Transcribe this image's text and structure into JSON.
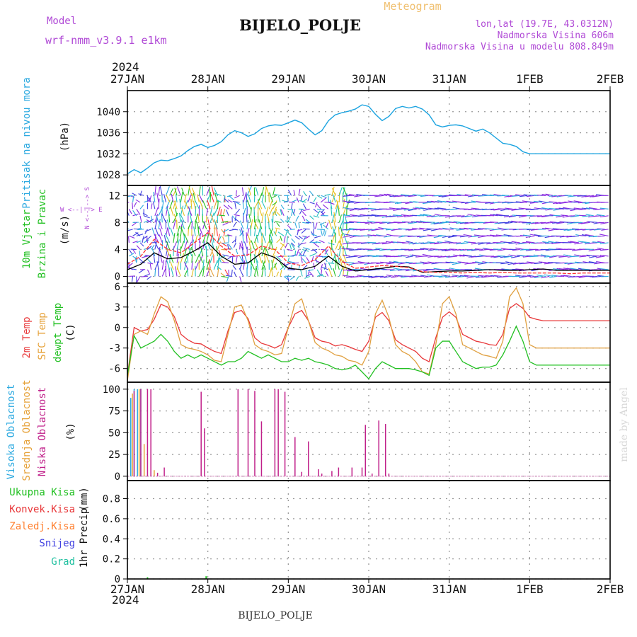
{
  "header": {
    "model_label": "Model",
    "model_name": "wrf-nmm_v3.9.1 e1km",
    "title": "BIJELO_POLJE",
    "meteogram_label": "Meteogram",
    "lonlat": "lon,lat (19.7E, 43.0312N)",
    "altitude": "Nadmorska Visina 606m",
    "model_altitude": "Nadmorska Visina u modelu 808.849m",
    "footer_station": "BIJELO_POLJE",
    "credit": "made by Angel"
  },
  "colors": {
    "pressure": "#1aa3e0",
    "mean_wind": "#000000",
    "gust": "#ff3030",
    "temp_2m": "#e8383a",
    "temp_sfc": "#e0a040",
    "dewpt": "#22c022",
    "cloud_high": "#2ba9e0",
    "cloud_mid": "#e6a23a",
    "cloud_low": "#c0208a",
    "precip_total": "#22c022",
    "precip_conv": "#e8383a",
    "precip_frz": "#ff8030",
    "snow": "#4040e0",
    "graupel": "#20c0a0",
    "label_purple": "#b04ad6"
  },
  "chart_data": [
    {
      "type": "line",
      "id": "pressure",
      "ylabel_title": "Pritisak na nivou mora",
      "ylabel_unit": "(hPa)",
      "ylim": [
        1026,
        1044
      ],
      "yticks": [
        "1028",
        "1032",
        "1036",
        "1040"
      ],
      "ytick_values": [
        1028,
        1032,
        1036,
        1040
      ],
      "x_hours": [
        0,
        2,
        4,
        6,
        8,
        10,
        12,
        14,
        16,
        18,
        20,
        22,
        24,
        26,
        28,
        30,
        32,
        34,
        36,
        38,
        40,
        42,
        44,
        46,
        48,
        50,
        52,
        54,
        56,
        58,
        60,
        62,
        64,
        66,
        68,
        70,
        72,
        74,
        76,
        78,
        80,
        82,
        84,
        86,
        88,
        90,
        92,
        94,
        96,
        98,
        100,
        102,
        104,
        106,
        108,
        110,
        112,
        114,
        116,
        118,
        120,
        122,
        124,
        126,
        128,
        130,
        132,
        134,
        136,
        138,
        140,
        142,
        144
      ],
      "series": [
        {
          "values": [
            1028.2,
            1029.0,
            1028.4,
            1029.3,
            1030.3,
            1030.8,
            1030.7,
            1031.1,
            1031.6,
            1032.6,
            1033.4,
            1033.8,
            1033.2,
            1033.6,
            1034.3,
            1035.6,
            1036.4,
            1036.0,
            1035.3,
            1035.8,
            1036.8,
            1037.3,
            1037.5,
            1037.4,
            1037.9,
            1038.4,
            1037.9,
            1036.7,
            1035.6,
            1036.4,
            1038.3,
            1039.4,
            1039.8,
            1040.1,
            1040.5,
            1041.3,
            1041.0,
            1039.5,
            1038.3,
            1039.1,
            1040.6,
            1041.0,
            1040.7,
            1041.0,
            1040.5,
            1039.4,
            1037.5,
            1037.1,
            1037.4,
            1037.5,
            1037.3,
            1036.8,
            1036.3,
            1036.7,
            1036.0,
            1035.0,
            1034.0,
            1033.8,
            1033.4,
            1032.4,
            1032.0,
            1032.0,
            1032.0,
            1032.0,
            1032.0,
            1032.0,
            1032.0,
            1032.0,
            1032.0,
            1032.0,
            1032.0,
            1032.0,
            1032.0
          ]
        }
      ]
    },
    {
      "type": "line",
      "id": "wind",
      "ylabel_title": "10m Vjetar",
      "ylabel_title2": "Brzina i Pravac",
      "ylabel_unit": "(m/s)",
      "compass_label": "W <--|--> E",
      "compass_label2": "N <--|--> S",
      "ylim": [
        -1,
        13.5
      ],
      "yticks": [
        "0",
        "4",
        "8",
        "12"
      ],
      "ytick_values": [
        0,
        4,
        8,
        12
      ],
      "x_hours": [
        0,
        4,
        8,
        12,
        16,
        20,
        24,
        28,
        32,
        36,
        40,
        44,
        48,
        52,
        56,
        60,
        64,
        68,
        72,
        76,
        80,
        84,
        88,
        92,
        96,
        100,
        104,
        108,
        112,
        116,
        120,
        124,
        128,
        132,
        136,
        140,
        144
      ],
      "series": [
        {
          "name": "mean",
          "values": [
            1.0,
            1.8,
            3.5,
            2.6,
            2.8,
            3.8,
            5.0,
            3.0,
            1.8,
            2.0,
            3.5,
            2.8,
            1.2,
            1.0,
            1.5,
            3.0,
            1.5,
            0.8,
            1.0,
            1.2,
            1.5,
            1.4,
            0.6,
            0.7,
            0.8,
            0.8,
            0.9,
            1.0,
            0.9,
            0.9,
            1.0,
            1.1,
            0.9,
            0.9,
            0.9,
            0.9,
            0.9
          ]
        },
        {
          "name": "gust",
          "values": [
            1.8,
            3.0,
            5.5,
            4.0,
            3.5,
            5.0,
            6.5,
            4.5,
            3.0,
            3.2,
            4.5,
            4.0,
            2.0,
            1.6,
            2.5,
            4.5,
            2.2,
            1.2,
            1.4,
            1.6,
            1.5,
            1.3,
            0.7,
            0.6,
            0.6,
            0.5,
            0.6,
            0.5,
            0.6,
            0.5,
            0.5,
            0.5,
            0.5,
            0.4,
            0.5,
            0.5,
            0.5
          ]
        }
      ]
    },
    {
      "type": "line",
      "id": "temperature",
      "ylabel_title": "2m Temp",
      "ylabel_title2": "SFC Temp",
      "ylabel_title3": "dewpt Temp",
      "ylabel_unit": "(C)",
      "ylim": [
        -8,
        6.5
      ],
      "yticks": [
        "-6",
        "-3",
        "0",
        "3",
        "6"
      ],
      "ytick_values": [
        -6,
        -3,
        0,
        3,
        6
      ],
      "x_hours": [
        0,
        2,
        4,
        6,
        8,
        10,
        12,
        14,
        16,
        18,
        20,
        22,
        24,
        26,
        28,
        30,
        32,
        34,
        36,
        38,
        40,
        42,
        44,
        46,
        48,
        50,
        52,
        54,
        56,
        58,
        60,
        62,
        64,
        66,
        68,
        70,
        72,
        74,
        76,
        78,
        80,
        82,
        84,
        86,
        88,
        90,
        92,
        94,
        96,
        98,
        100,
        102,
        104,
        106,
        108,
        110,
        112,
        114,
        116,
        118,
        120,
        122,
        124,
        126,
        128,
        130,
        132,
        134,
        136,
        138,
        140,
        142,
        144
      ],
      "series": [
        {
          "name": "2m",
          "values": [
            -7.0,
            0.0,
            -0.5,
            -0.3,
            1.2,
            3.4,
            3.0,
            1.6,
            -1.0,
            -1.8,
            -2.3,
            -2.4,
            -3.0,
            -3.5,
            -3.8,
            -0.5,
            2.2,
            2.5,
            1.3,
            -1.5,
            -2.3,
            -2.6,
            -3.0,
            -2.5,
            0.0,
            2.0,
            2.5,
            1.0,
            -1.5,
            -2.0,
            -2.2,
            -2.7,
            -2.5,
            -2.8,
            -3.2,
            -3.5,
            -2.0,
            1.5,
            2.2,
            1.0,
            -1.8,
            -2.5,
            -3.0,
            -3.5,
            -4.5,
            -5.0,
            -1.5,
            1.5,
            2.3,
            1.5,
            -1.0,
            -1.5,
            -2.0,
            -2.2,
            -2.5,
            -2.6,
            -1.0,
            2.8,
            3.5,
            2.8,
            1.5,
            1.2,
            1.0,
            1.0,
            1.0,
            1.0,
            1.0,
            1.0,
            1.0,
            1.0,
            1.0,
            1.0,
            1.0
          ]
        },
        {
          "name": "sfc",
          "values": [
            -7.8,
            -1.0,
            -0.5,
            -1.0,
            2.0,
            4.5,
            3.8,
            1.0,
            -2.5,
            -3.0,
            -3.2,
            -3.5,
            -4.0,
            -4.8,
            -5.0,
            -1.0,
            3.0,
            3.3,
            1.0,
            -2.5,
            -3.2,
            -3.5,
            -4.0,
            -3.8,
            0.0,
            3.5,
            4.2,
            1.0,
            -2.2,
            -3.0,
            -3.4,
            -4.0,
            -4.2,
            -4.8,
            -5.0,
            -5.5,
            -3.5,
            2.0,
            4.0,
            1.5,
            -2.5,
            -3.5,
            -4.0,
            -5.0,
            -6.5,
            -6.8,
            -2.5,
            3.5,
            4.5,
            2.0,
            -2.5,
            -3.0,
            -3.5,
            -4.0,
            -4.2,
            -4.5,
            -2.0,
            4.5,
            5.8,
            3.5,
            -2.5,
            -3.0,
            -3.0,
            -3.0,
            -3.0,
            -3.0,
            -3.0,
            -3.0,
            -3.0,
            -3.0,
            -3.0,
            -3.0,
            -3.0
          ]
        },
        {
          "name": "dewpt",
          "values": [
            -7.0,
            -1.2,
            -3.0,
            -2.5,
            -2.0,
            -1.0,
            -2.0,
            -3.5,
            -4.5,
            -4.0,
            -4.5,
            -4.0,
            -4.5,
            -5.0,
            -5.5,
            -5.0,
            -5.0,
            -4.5,
            -3.5,
            -4.0,
            -4.5,
            -4.0,
            -4.5,
            -5.0,
            -5.0,
            -4.5,
            -4.8,
            -4.5,
            -5.0,
            -5.2,
            -5.5,
            -6.0,
            -6.2,
            -6.0,
            -5.5,
            -6.5,
            -7.5,
            -6.0,
            -5.0,
            -5.5,
            -6.0,
            -6.0,
            -6.0,
            -6.2,
            -6.5,
            -7.0,
            -3.0,
            -2.0,
            -2.0,
            -3.5,
            -5.0,
            -5.5,
            -6.0,
            -5.8,
            -5.8,
            -5.5,
            -4.0,
            -2.0,
            0.2,
            -2.0,
            -5.0,
            -5.5,
            -5.5,
            -5.5,
            -5.5,
            -5.5,
            -5.5,
            -5.5,
            -5.5,
            -5.5,
            -5.5,
            -5.5,
            -5.5
          ]
        }
      ]
    },
    {
      "type": "bar",
      "id": "clouds",
      "ylabel_title": "Visoka Oblacnost",
      "ylabel_title2": "Srednja Oblacnost",
      "ylabel_title3": "Niska Oblacnost",
      "ylabel_unit": "(%)",
      "ylim": [
        -5,
        108
      ],
      "yticks": [
        "0",
        "25",
        "50",
        "75",
        "100"
      ],
      "ytick_values": [
        0,
        25,
        50,
        75,
        100
      ],
      "series": [
        {
          "name": "high",
          "hours": [
            1,
            2,
            3,
            4
          ],
          "values": [
            90,
            100,
            100,
            100
          ]
        },
        {
          "name": "mid",
          "hours": [
            1.5,
            3.5,
            5,
            8
          ],
          "values": [
            95,
            100,
            37,
            7
          ]
        },
        {
          "name": "low",
          "hours": [
            2,
            4,
            6,
            7,
            9,
            11,
            22,
            23,
            33,
            36,
            38,
            40,
            44,
            45,
            47,
            50,
            52,
            54,
            57,
            58,
            61,
            63,
            67,
            70,
            71,
            73,
            75,
            77,
            78
          ],
          "values": [
            98,
            100,
            100,
            100,
            4,
            10,
            97,
            55,
            100,
            100,
            98,
            63,
            100,
            100,
            97,
            45,
            5,
            40,
            8,
            3,
            6,
            10,
            10,
            10,
            59,
            3,
            64,
            60,
            3
          ]
        }
      ]
    },
    {
      "type": "bar",
      "id": "precip",
      "ylabel_title": "1hr Precip",
      "ylabel_unit": "(mm)",
      "legend": [
        "Ukupna Kisa",
        "Konvek.Kisa",
        "Zaledj.Kisa",
        "Snijeg",
        "Grad"
      ],
      "ylim": [
        0,
        0.98
      ],
      "yticks": [
        "0",
        "0.2",
        "0.4",
        "0.6",
        "0.8"
      ],
      "ytick_values": [
        0,
        0.2,
        0.4,
        0.6,
        0.8
      ],
      "series": [
        {
          "name": "Ukupna Kisa",
          "hours": [
            6,
            23.5
          ],
          "values": [
            0.01,
            0.02
          ]
        }
      ]
    }
  ],
  "x_axis": {
    "year_label": "2024",
    "tick_labels": [
      "27JAN",
      "28JAN",
      "29JAN",
      "30JAN",
      "31JAN",
      "1FEB",
      "2FEB"
    ],
    "tick_hours": [
      0,
      24,
      48,
      72,
      96,
      120,
      144
    ],
    "range_hours": [
      0,
      144
    ]
  }
}
